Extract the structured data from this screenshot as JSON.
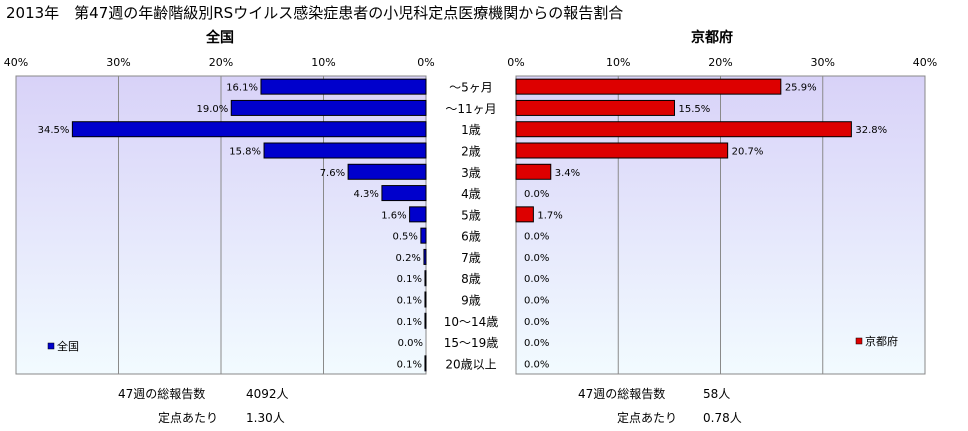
{
  "page_title": "2013年　第47週の年齢階級別RSウイルス感染症患者の小児科定点医療機関からの報告割合",
  "colors": {
    "left_bar": "#0000cc",
    "right_bar": "#dd0000",
    "plot_gradient_top": "#d8d2f8",
    "plot_gradient_bottom": "#f2fbff"
  },
  "chart_data": [
    {
      "type": "bar",
      "orientation": "horizontal",
      "title": "全国",
      "categories": [
        "～5ヶ月",
        "～11ヶ月",
        "1歳",
        "2歳",
        "3歳",
        "4歳",
        "5歳",
        "6歳",
        "7歳",
        "8歳",
        "9歳",
        "10～14歳",
        "15～19歳",
        "20歳以上"
      ],
      "series": [
        {
          "name": "全国",
          "values": [
            16.1,
            19.0,
            34.5,
            15.8,
            7.6,
            4.3,
            1.6,
            0.5,
            0.2,
            0.1,
            0.1,
            0.1,
            0.0,
            0.1
          ]
        }
      ],
      "xlim": [
        0,
        40
      ],
      "x_direction": "reversed",
      "ticks": [
        "40%",
        "30%",
        "20%",
        "10%",
        "0%"
      ],
      "legend": "bottom-left",
      "grid": true
    },
    {
      "type": "bar",
      "orientation": "horizontal",
      "title": "京都府",
      "categories": [
        "～5ヶ月",
        "～11ヶ月",
        "1歳",
        "2歳",
        "3歳",
        "4歳",
        "5歳",
        "6歳",
        "7歳",
        "8歳",
        "9歳",
        "10～14歳",
        "15～19歳",
        "20歳以上"
      ],
      "series": [
        {
          "name": "京都府",
          "values": [
            25.9,
            15.5,
            32.8,
            20.7,
            3.4,
            0.0,
            1.7,
            0.0,
            0.0,
            0.0,
            0.0,
            0.0,
            0.0,
            0.0
          ]
        }
      ],
      "xlim": [
        0,
        40
      ],
      "ticks": [
        "0%",
        "10%",
        "20%",
        "30%",
        "40%"
      ],
      "legend": "bottom-right",
      "grid": true
    }
  ],
  "summary": {
    "left": {
      "total_label": "47週の総報告数",
      "total_value": "4092人",
      "per_label": "定点あたり",
      "per_value": "1.30人"
    },
    "right": {
      "total_label": "47週の総報告数",
      "total_value": "58人",
      "per_label": "定点あたり",
      "per_value": "0.78人"
    }
  }
}
